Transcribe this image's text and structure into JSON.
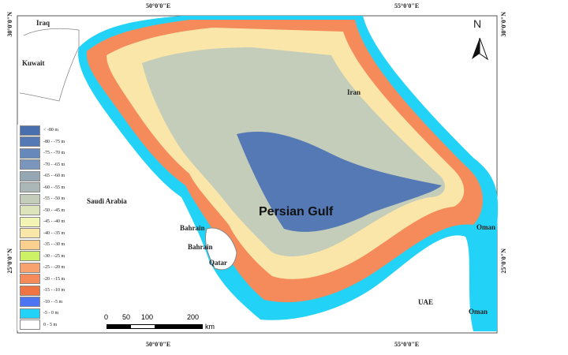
{
  "map": {
    "title": "Persian Gulf",
    "top_ticks": [
      "50°0'0\"E",
      "55°0'0\"E"
    ],
    "bottom_ticks": [
      "50°0'0\"E",
      "55°0'0\"E"
    ],
    "left_ticks": [
      "30°0'0\"N",
      "25°0'0\"N"
    ],
    "right_ticks": [
      "30°0'0\"N",
      "25°0'0\"N"
    ],
    "north_label": "N",
    "places": [
      "Iraq",
      "Kuwait",
      "Iran",
      "Saudi Arabia",
      "Bahrain",
      "Bahrain",
      "Qatar",
      "Oman",
      "UAE",
      "Oman"
    ],
    "scale": {
      "labels": [
        "0",
        "50",
        "100",
        "200"
      ],
      "unit": "km"
    },
    "legend": [
      {
        "label": "< -80 m",
        "color": "#4a6fae"
      },
      {
        "label": "-80 - -75 m",
        "color": "#5479b4"
      },
      {
        "label": "-75 - -70 m",
        "color": "#6688bb"
      },
      {
        "label": "-70 - -65 m",
        "color": "#7b96bd"
      },
      {
        "label": "-65 - -60 m",
        "color": "#94a7b3"
      },
      {
        "label": "-60 - -55 m",
        "color": "#aab7b6"
      },
      {
        "label": "-55 - -50 m",
        "color": "#c4cdb9"
      },
      {
        "label": "-50 - -45 m",
        "color": "#dde4bc"
      },
      {
        "label": "-45 - -40 m",
        "color": "#f2f5b4"
      },
      {
        "label": "-40 - -35 m",
        "color": "#fbe6a9"
      },
      {
        "label": "-35 - -30 m",
        "color": "#fbcf8e"
      },
      {
        "label": "-30 - -25 m",
        "color": "#cdf266"
      },
      {
        "label": "-25 - -20 m",
        "color": "#f8a36f"
      },
      {
        "label": "-20 - -15 m",
        "color": "#f58a5b"
      },
      {
        "label": "-15 - -10 m",
        "color": "#ef7444"
      },
      {
        "label": "-10 - -5 m",
        "color": "#4d74f2"
      },
      {
        "label": "-5 - 0 m",
        "color": "#22d3f7"
      },
      {
        "label": "0 - 5 m",
        "color": "#ffffff"
      }
    ]
  }
}
